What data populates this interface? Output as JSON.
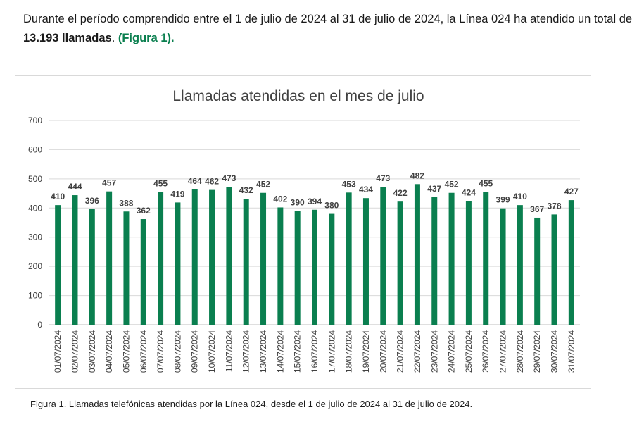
{
  "intro": {
    "text_before": "Durante el período comprendido entre el 1 de julio de 2024 al 31 de julio de 2024, la Línea 024 ha atendido un total de ",
    "total": "13.193 llamadas",
    "text_after": ". ",
    "figure_ref": "(Figura 1)."
  },
  "caption": "Figura 1. Llamadas telefónicas atendidas por la Línea 024, desde el 1 de julio de 2024 al 31 de julio de 2024.",
  "colors": {
    "bar": "#0a7f4f",
    "grid": "#d9d9d9",
    "text": "#404040",
    "accent": "#0a7f4f"
  },
  "chart_data": {
    "type": "bar",
    "title": "Llamadas atendidas en el mes de julio",
    "xlabel": "",
    "ylabel": "",
    "ylim": [
      0,
      700
    ],
    "yticks": [
      0,
      100,
      200,
      300,
      400,
      500,
      600,
      700
    ],
    "grid": true,
    "legend": "none",
    "categories": [
      "01/07/2024",
      "02/07/2024",
      "03/07/2024",
      "04/07/2024",
      "05/07/2024",
      "06/07/2024",
      "07/07/2024",
      "08/07/2024",
      "09/07/2024",
      "10/07/2024",
      "11/07/2024",
      "12/07/2024",
      "13/07/2024",
      "14/07/2024",
      "15/07/2024",
      "16/07/2024",
      "17/07/2024",
      "18/07/2024",
      "19/07/2024",
      "20/07/2024",
      "21/07/2024",
      "22/07/2024",
      "23/07/2024",
      "24/07/2024",
      "25/07/2024",
      "26/07/2024",
      "27/07/2024",
      "28/07/2024",
      "29/07/2024",
      "30/07/2024",
      "31/07/2024"
    ],
    "values": [
      410,
      444,
      396,
      457,
      388,
      362,
      455,
      419,
      464,
      462,
      473,
      432,
      452,
      402,
      390,
      394,
      380,
      453,
      434,
      473,
      422,
      482,
      437,
      452,
      424,
      455,
      399,
      410,
      367,
      378,
      427
    ]
  }
}
